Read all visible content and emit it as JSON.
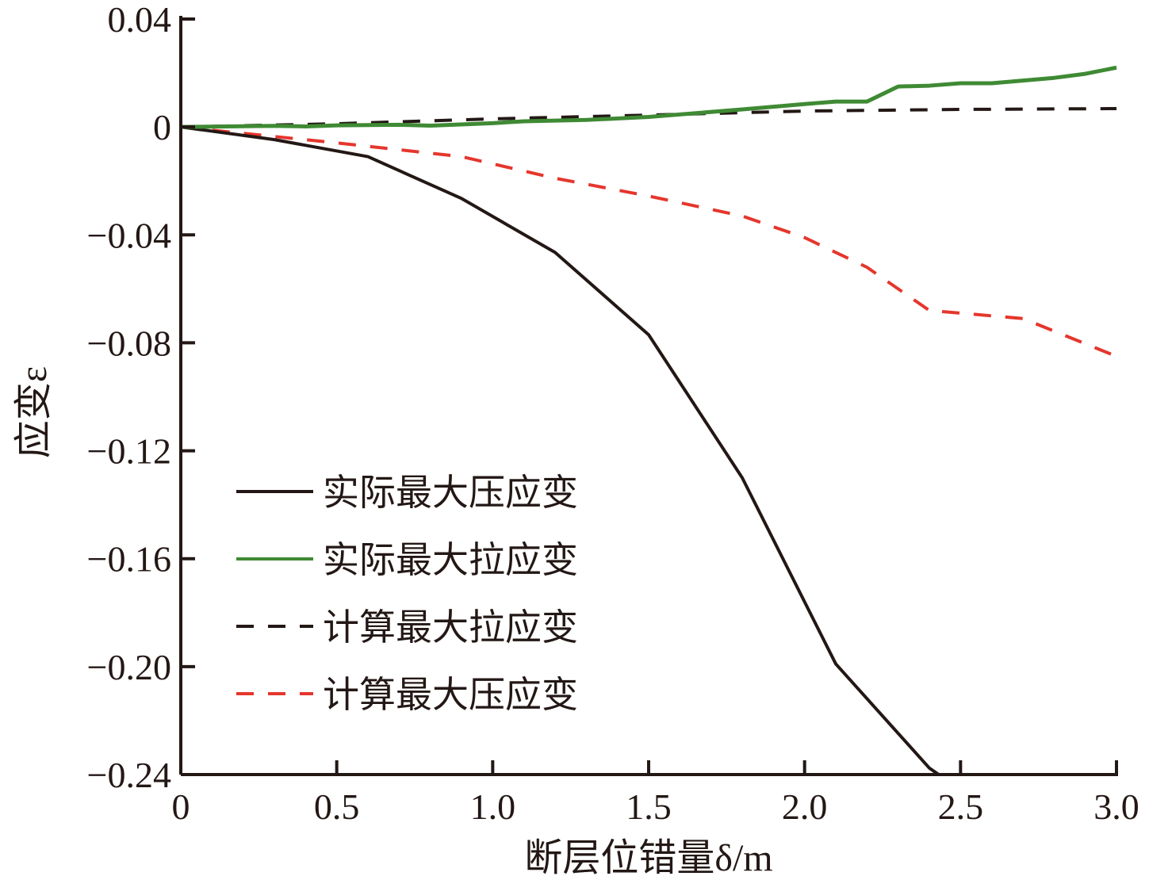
{
  "chart_data": {
    "type": "line",
    "title": "",
    "xlabel": "断层位错量δ/m",
    "ylabel": "应变ε",
    "xlim": [
      0,
      3.0
    ],
    "ylim": [
      -0.24,
      0.04
    ],
    "xticks": [
      "0",
      "0.5",
      "1.0",
      "1.5",
      "2.0",
      "2.5",
      "3.0"
    ],
    "xtick_values": [
      0,
      0.5,
      1.0,
      1.5,
      2.0,
      2.5,
      3.0
    ],
    "yticks": [
      "0.04",
      "0",
      "−0.04",
      "−0.08",
      "−0.12",
      "−0.16",
      "−0.20",
      "−0.24"
    ],
    "ytick_values": [
      0.04,
      0,
      -0.04,
      -0.08,
      -0.12,
      -0.16,
      -0.2,
      -0.24
    ],
    "grid": false,
    "legend_position": "bottom-left",
    "series": [
      {
        "name": "实际最大压应变",
        "color": "#231815",
        "dash": "solid",
        "x": [
          0,
          0.3,
          0.6,
          0.9,
          1.2,
          1.5,
          1.8,
          2.1,
          2.4,
          2.43
        ],
        "y": [
          0,
          -0.0047,
          -0.011,
          -0.0265,
          -0.0465,
          -0.077,
          -0.13,
          -0.199,
          -0.2376,
          -0.24
        ]
      },
      {
        "name": "实际最大拉应变",
        "color": "#3f8a34",
        "dash": "solid",
        "x": [
          0,
          0.3,
          0.4,
          0.5,
          0.7,
          0.8,
          1.0,
          1.1,
          1.3,
          1.5,
          1.8,
          2.0,
          2.1,
          2.2,
          2.3,
          2.4,
          2.5,
          2.6,
          2.7,
          2.8,
          2.9,
          3.0
        ],
        "y": [
          0,
          0.0004,
          0.0002,
          0.0006,
          0.0008,
          0.0005,
          0.0014,
          0.0021,
          0.0026,
          0.0037,
          0.0065,
          0.0085,
          0.0094,
          0.0094,
          0.015,
          0.0153,
          0.0162,
          0.0162,
          0.0172,
          0.0182,
          0.0197,
          0.022
        ]
      },
      {
        "name": "计算最大拉应变",
        "color": "#231815",
        "dash": "dashed",
        "x": [
          0,
          0.5,
          1.0,
          1.5,
          2.0,
          2.5,
          3.0
        ],
        "y": [
          0,
          0.0012,
          0.003,
          0.0044,
          0.0059,
          0.0065,
          0.0068
        ]
      },
      {
        "name": "计算最大压应变",
        "color": "#e5362d",
        "dash": "dashed",
        "x": [
          0,
          0.5,
          0.9,
          1.2,
          1.5,
          1.8,
          2.0,
          2.2,
          2.4,
          2.7,
          3.0
        ],
        "y": [
          0,
          -0.0059,
          -0.011,
          -0.019,
          -0.0256,
          -0.033,
          -0.041,
          -0.052,
          -0.068,
          -0.071,
          -0.085
        ]
      }
    ]
  }
}
